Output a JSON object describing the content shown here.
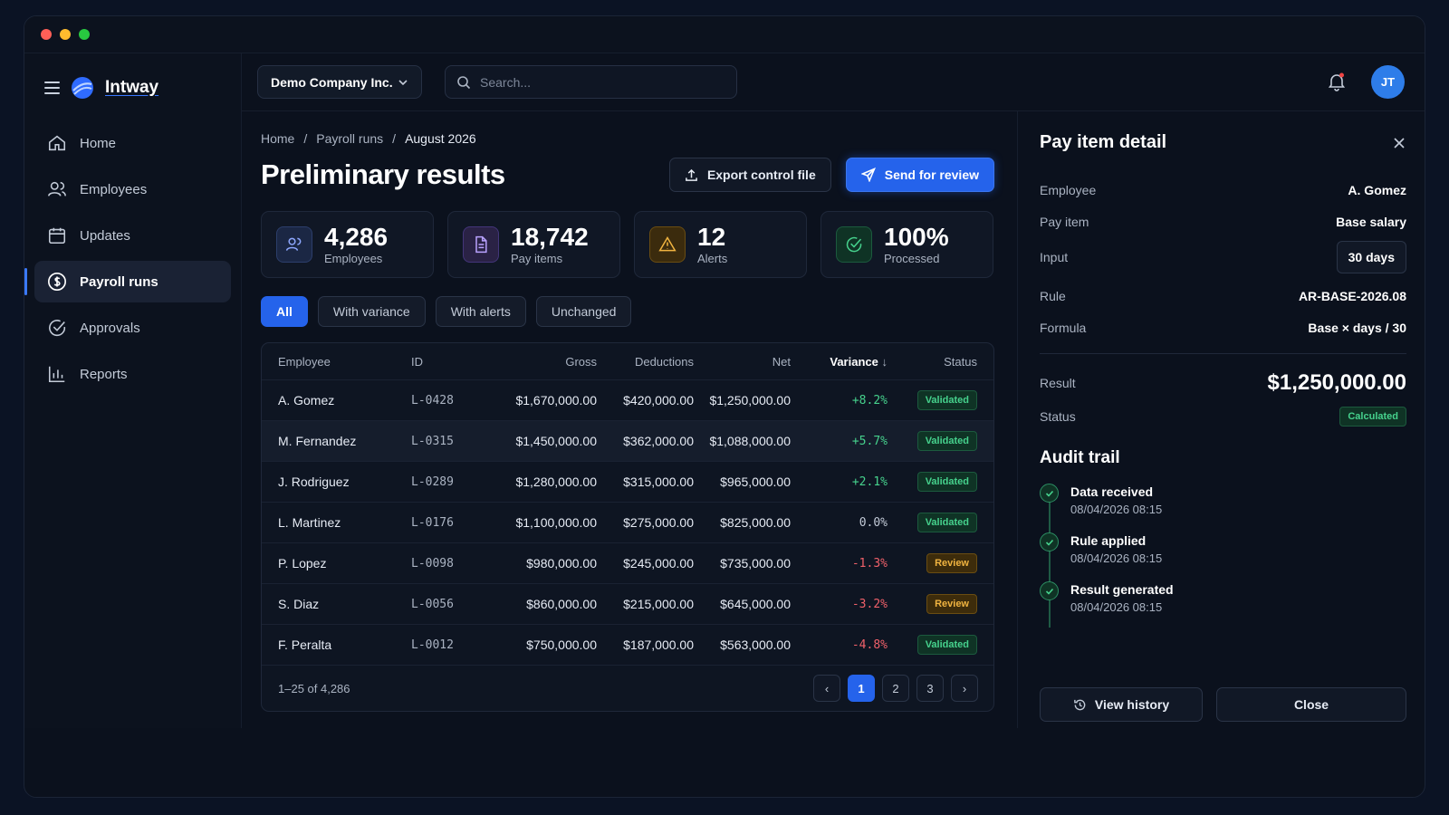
{
  "window": {
    "dots": [
      "#ff5f57",
      "#febc2e",
      "#28c840"
    ]
  },
  "brand": {
    "name": "Intway"
  },
  "sidebar": {
    "items": [
      {
        "label": "Home",
        "icon": "home-icon",
        "active": false
      },
      {
        "label": "Employees",
        "icon": "users-icon",
        "active": false
      },
      {
        "label": "Updates",
        "icon": "calendar-icon",
        "active": false
      },
      {
        "label": "Payroll runs",
        "icon": "dollar-circle-icon",
        "active": true
      },
      {
        "label": "Approvals",
        "icon": "check-circle-icon",
        "active": false
      },
      {
        "label": "Reports",
        "icon": "bar-chart-icon",
        "active": false
      }
    ]
  },
  "topbar": {
    "company": "Demo Company Inc.",
    "search_placeholder": "Search...",
    "avatar_initials": "JT",
    "notification_dot_color": "#ef4444"
  },
  "breadcrumb": [
    "Home",
    "Payroll runs",
    "August 2026"
  ],
  "page": {
    "title": "Preliminary results",
    "export_label": "Export control file",
    "send_label": "Send for review"
  },
  "stats": [
    {
      "value": "4,286",
      "label": "Employees",
      "icon": "users-icon",
      "color": "#6b8cff"
    },
    {
      "value": "18,742",
      "label": "Pay items",
      "icon": "document-icon",
      "color": "#a78bfa"
    },
    {
      "value": "12",
      "label": "Alerts",
      "icon": "warning-icon",
      "color": "#f1b440"
    },
    {
      "value": "100%",
      "label": "Processed",
      "icon": "check-circle-icon",
      "color": "#46d28d"
    }
  ],
  "filters": [
    "All",
    "With variance",
    "With alerts",
    "Unchanged"
  ],
  "table": {
    "headers": {
      "employee": "Employee",
      "id": "ID",
      "gross": "Gross",
      "deductions": "Deductions",
      "net": "Net",
      "variance": "Variance",
      "status": "Status"
    },
    "rows": [
      {
        "employee": "A. Gomez",
        "id": "L-0428",
        "gross": "$1,670,000.00",
        "deductions": "$420,000.00",
        "net": "$1,250,000.00",
        "variance": "+8.2%",
        "trend": "pos",
        "status": "Validated",
        "kind": "val"
      },
      {
        "employee": "M. Fernandez",
        "id": "L-0315",
        "gross": "$1,450,000.00",
        "deductions": "$362,000.00",
        "net": "$1,088,000.00",
        "variance": "+5.7%",
        "trend": "pos",
        "status": "Validated",
        "kind": "val"
      },
      {
        "employee": "J. Rodriguez",
        "id": "L-0289",
        "gross": "$1,280,000.00",
        "deductions": "$315,000.00",
        "net": "$965,000.00",
        "variance": "+2.1%",
        "trend": "pos",
        "status": "Validated",
        "kind": "val"
      },
      {
        "employee": "L. Martinez",
        "id": "L-0176",
        "gross": "$1,100,000.00",
        "deductions": "$275,000.00",
        "net": "$825,000.00",
        "variance": "0.0%",
        "trend": "zero",
        "status": "Validated",
        "kind": "val"
      },
      {
        "employee": "P. Lopez",
        "id": "L-0098",
        "gross": "$980,000.00",
        "deductions": "$245,000.00",
        "net": "$735,000.00",
        "variance": "-1.3%",
        "trend": "neg",
        "status": "Review",
        "kind": "rev"
      },
      {
        "employee": "S. Diaz",
        "id": "L-0056",
        "gross": "$860,000.00",
        "deductions": "$215,000.00",
        "net": "$645,000.00",
        "variance": "-3.2%",
        "trend": "neg",
        "status": "Review",
        "kind": "rev"
      },
      {
        "employee": "F. Peralta",
        "id": "L-0012",
        "gross": "$750,000.00",
        "deductions": "$187,000.00",
        "net": "$563,000.00",
        "variance": "-4.8%",
        "trend": "neg",
        "status": "Validated",
        "kind": "val"
      }
    ],
    "range_text": "1–25 of 4,286",
    "pages": [
      "1",
      "2",
      "3"
    ]
  },
  "detail": {
    "title": "Pay item detail",
    "fields": [
      {
        "key": "Employee",
        "value": "A. Gomez"
      },
      {
        "key": "Pay item",
        "value": "Base salary"
      },
      {
        "key": "Input",
        "value": "30 days"
      },
      {
        "key": "Rule",
        "value": "AR-BASE-2026.08"
      },
      {
        "key": "Formula",
        "value": "Base × days / 30"
      }
    ],
    "result_label": "Result",
    "result_value": "$1,250,000.00",
    "status_label": "Status",
    "status_value": "Calculated",
    "audit_title": "Audit trail",
    "audit": [
      {
        "title": "Data received",
        "time": "08/04/2026 08:15"
      },
      {
        "title": "Rule applied",
        "time": "08/04/2026 08:15"
      },
      {
        "title": "Result generated",
        "time": "08/04/2026 08:15"
      }
    ],
    "history_label": "View history",
    "close_label": "Close"
  }
}
